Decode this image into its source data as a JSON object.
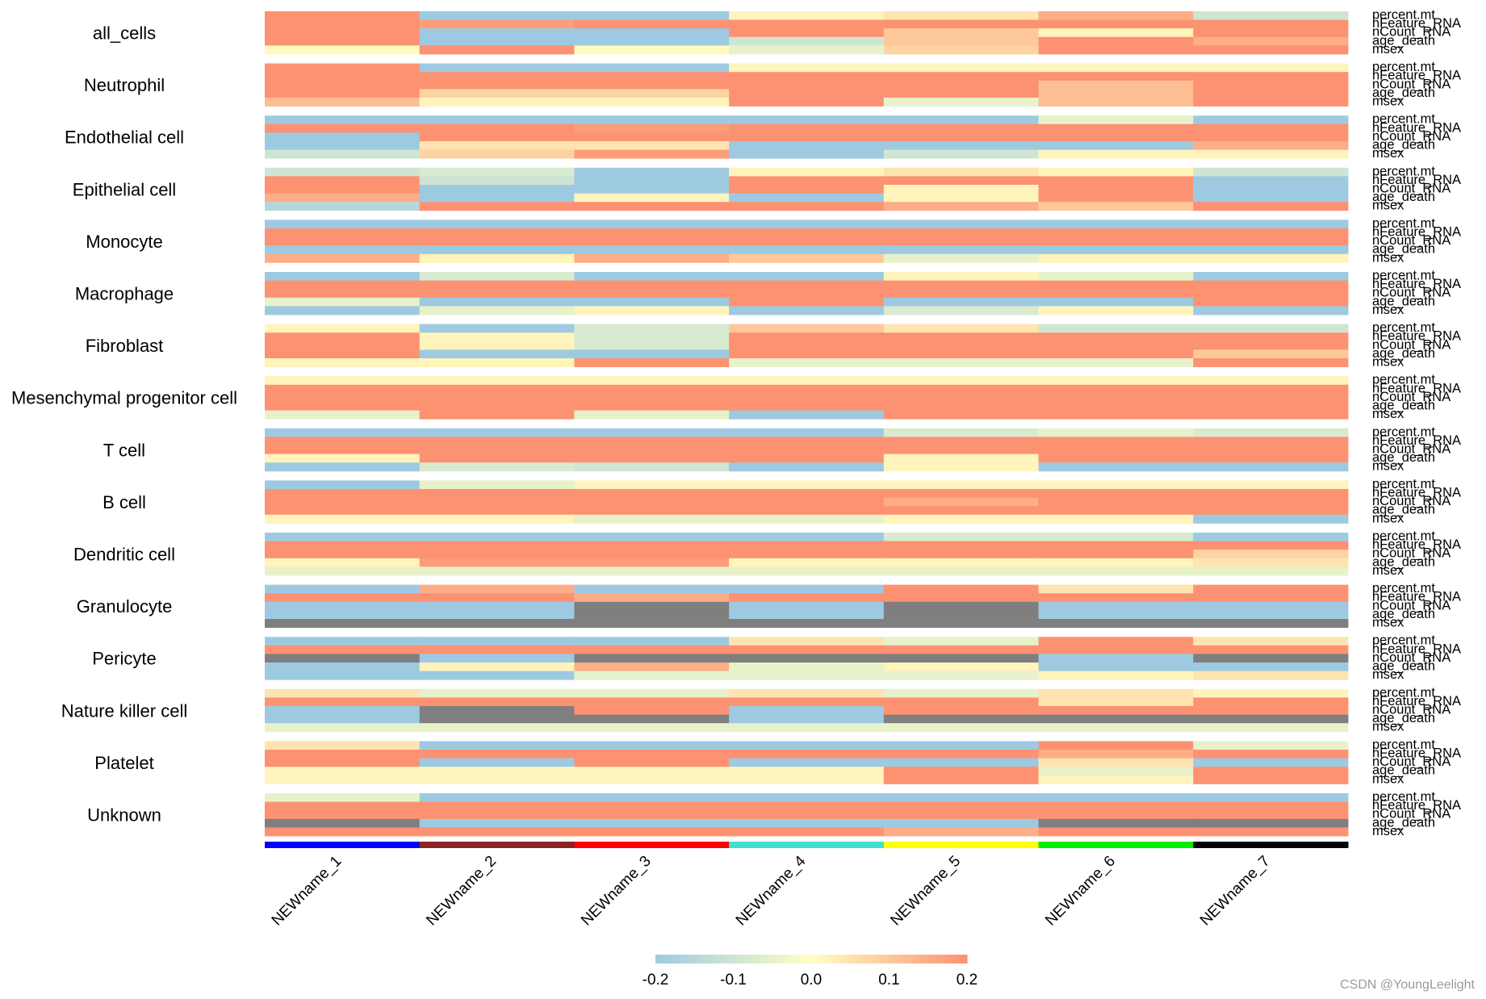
{
  "chart_data": {
    "type": "heatmap",
    "title": "",
    "columns": [
      "NEWname_1",
      "NEWname_2",
      "NEWname_3",
      "NEWname_4",
      "NEWname_5",
      "NEWname_6",
      "NEWname_7"
    ],
    "column_colors": [
      "#0000ff",
      "#8b2323",
      "#ff0000",
      "#40e0d0",
      "#ffff00",
      "#00ee00",
      "#000000"
    ],
    "variables": [
      "percent.mt",
      "nFeature_RNA",
      "nCount_RNA",
      "age_death",
      "msex"
    ],
    "groups": [
      "all_cells",
      "Neutrophil",
      "Endothelial cell",
      "Epithelial cell",
      "Monocyte",
      "Macrophage",
      "Fibroblast",
      "Mesenchymal progenitor cell",
      "T cell",
      "B cell",
      "Dendritic cell",
      "Granulocyte",
      "Pericyte",
      "Nature killer cell",
      "Platelet",
      "Unknown"
    ],
    "colorbar": {
      "range": [
        -0.2,
        0.2
      ],
      "ticks": [
        "-0.2",
        "-0.1",
        "0.0",
        "0.1",
        "0.2"
      ],
      "low": "#9ecae1",
      "mid": "#ffffc4",
      "high": "#fc9272",
      "na": "#7f7f7f"
    },
    "matrices": [
      [
        [
          0.2,
          -0.2,
          -0.2,
          0.02,
          0.05,
          0.15,
          -0.1
        ],
        [
          0.2,
          0.18,
          0.2,
          0.2,
          0.2,
          0.2,
          0.2
        ],
        [
          0.2,
          -0.2,
          -0.2,
          0.2,
          0.1,
          0.02,
          0.2
        ],
        [
          0.2,
          -0.2,
          -0.2,
          -0.1,
          0.1,
          0.2,
          0.15
        ],
        [
          0.01,
          0.2,
          0.01,
          -0.05,
          0.08,
          0.2,
          0.2
        ]
      ],
      [
        [
          0.2,
          -0.2,
          -0.2,
          0.02,
          0.02,
          0.02,
          0.02
        ],
        [
          0.2,
          0.2,
          0.2,
          0.2,
          0.2,
          0.2,
          0.2
        ],
        [
          0.2,
          0.2,
          0.2,
          0.2,
          0.2,
          0.12,
          0.2
        ],
        [
          0.2,
          0.08,
          0.08,
          0.2,
          0.2,
          0.12,
          0.2
        ],
        [
          0.12,
          0.02,
          0.02,
          0.2,
          -0.05,
          0.12,
          0.2
        ]
      ],
      [
        [
          -0.2,
          -0.2,
          -0.2,
          -0.2,
          -0.2,
          -0.05,
          -0.2
        ],
        [
          0.2,
          0.2,
          0.18,
          0.2,
          0.2,
          0.2,
          0.2
        ],
        [
          -0.2,
          0.2,
          0.2,
          0.2,
          0.2,
          0.2,
          0.2
        ],
        [
          -0.2,
          0.05,
          0.05,
          -0.2,
          -0.2,
          -0.2,
          0.15
        ],
        [
          -0.1,
          0.08,
          0.18,
          -0.2,
          -0.1,
          0.02,
          0.02
        ]
      ],
      [
        [
          -0.1,
          -0.08,
          -0.2,
          0.02,
          0.05,
          0.02,
          -0.1
        ],
        [
          0.2,
          -0.1,
          -0.2,
          0.2,
          0.2,
          0.2,
          -0.2
        ],
        [
          0.2,
          -0.2,
          -0.2,
          0.2,
          0.02,
          0.2,
          -0.2
        ],
        [
          0.15,
          -0.2,
          0.02,
          -0.2,
          0.02,
          0.2,
          -0.2
        ],
        [
          -0.15,
          0.2,
          0.2,
          0.2,
          0.15,
          0.1,
          0.2
        ]
      ],
      [
        [
          -0.2,
          -0.2,
          -0.2,
          -0.2,
          -0.2,
          -0.2,
          -0.2
        ],
        [
          0.2,
          0.2,
          0.2,
          0.2,
          0.2,
          0.2,
          0.2
        ],
        [
          0.2,
          0.2,
          0.2,
          0.2,
          0.2,
          0.2,
          0.2
        ],
        [
          -0.2,
          -0.2,
          -0.2,
          -0.2,
          -0.2,
          -0.2,
          -0.2
        ],
        [
          0.15,
          0.02,
          0.15,
          0.1,
          -0.05,
          0.02,
          0.02
        ]
      ],
      [
        [
          -0.2,
          -0.08,
          -0.2,
          -0.2,
          0.02,
          -0.05,
          -0.2
        ],
        [
          0.2,
          0.2,
          0.2,
          0.2,
          0.2,
          0.2,
          0.2
        ],
        [
          0.2,
          0.2,
          0.2,
          0.2,
          0.2,
          0.2,
          0.2
        ],
        [
          -0.05,
          -0.2,
          -0.2,
          0.2,
          -0.2,
          -0.2,
          0.2
        ],
        [
          -0.2,
          -0.05,
          0.02,
          -0.2,
          -0.08,
          0.02,
          -0.2
        ]
      ],
      [
        [
          0.02,
          -0.2,
          -0.08,
          0.1,
          0.05,
          -0.1,
          -0.1
        ],
        [
          0.2,
          0.02,
          -0.08,
          0.2,
          0.2,
          0.2,
          0.2
        ],
        [
          0.2,
          0.02,
          -0.08,
          0.2,
          0.2,
          0.2,
          0.2
        ],
        [
          0.2,
          -0.2,
          -0.2,
          0.2,
          0.2,
          0.2,
          0.1
        ],
        [
          0.02,
          0.02,
          0.2,
          -0.05,
          -0.05,
          -0.05,
          0.2
        ]
      ],
      [
        [
          0.02,
          0.02,
          0.02,
          0.02,
          0.02,
          0.02,
          0.02
        ],
        [
          0.2,
          0.2,
          0.2,
          0.2,
          0.2,
          0.2,
          0.2
        ],
        [
          0.2,
          0.2,
          0.2,
          0.2,
          0.2,
          0.2,
          0.2
        ],
        [
          0.2,
          0.2,
          0.2,
          0.2,
          0.2,
          0.2,
          0.2
        ],
        [
          -0.05,
          0.2,
          -0.05,
          -0.2,
          0.2,
          0.2,
          0.2
        ]
      ],
      [
        [
          -0.2,
          -0.2,
          -0.2,
          -0.2,
          -0.08,
          -0.05,
          -0.08
        ],
        [
          0.2,
          0.2,
          0.2,
          0.2,
          0.2,
          0.2,
          0.2
        ],
        [
          0.2,
          0.2,
          0.2,
          0.2,
          0.2,
          0.2,
          0.2
        ],
        [
          0.02,
          0.2,
          0.2,
          0.2,
          0.02,
          0.2,
          0.2
        ],
        [
          -0.2,
          -0.08,
          -0.1,
          -0.2,
          0.02,
          -0.2,
          -0.2
        ]
      ],
      [
        [
          -0.2,
          -0.05,
          0.02,
          0.02,
          0.02,
          0.02,
          0.02
        ],
        [
          0.2,
          0.2,
          0.2,
          0.2,
          0.2,
          0.2,
          0.2
        ],
        [
          0.2,
          0.2,
          0.2,
          0.2,
          0.15,
          0.2,
          0.2
        ],
        [
          0.2,
          0.2,
          0.2,
          0.2,
          0.2,
          0.2,
          0.2
        ],
        [
          0.02,
          0.02,
          -0.05,
          -0.05,
          0.02,
          0.02,
          -0.2
        ]
      ],
      [
        [
          -0.2,
          -0.2,
          -0.2,
          -0.2,
          -0.08,
          -0.08,
          -0.2
        ],
        [
          0.2,
          0.2,
          0.2,
          0.2,
          0.2,
          0.2,
          0.2
        ],
        [
          0.2,
          0.2,
          0.2,
          0.2,
          0.2,
          0.2,
          0.08
        ],
        [
          0.02,
          0.18,
          0.18,
          0.02,
          0.02,
          0.02,
          0.05
        ],
        [
          -0.05,
          -0.05,
          -0.05,
          -0.05,
          -0.05,
          -0.05,
          -0.05
        ]
      ],
      [
        [
          -0.2,
          0.15,
          -0.2,
          -0.2,
          0.2,
          0.05,
          0.2
        ],
        [
          0.2,
          0.2,
          0.15,
          0.2,
          0.2,
          0.2,
          0.2
        ],
        [
          -0.2,
          -0.2,
          null,
          -0.2,
          null,
          -0.2,
          -0.2
        ],
        [
          -0.2,
          -0.2,
          null,
          -0.2,
          null,
          -0.2,
          -0.2
        ],
        [
          null,
          null,
          null,
          null,
          null,
          null,
          null
        ]
      ],
      [
        [
          -0.2,
          -0.2,
          -0.2,
          0.05,
          -0.05,
          0.2,
          0.05
        ],
        [
          0.2,
          0.2,
          0.2,
          0.2,
          0.2,
          0.2,
          0.2
        ],
        [
          null,
          -0.2,
          null,
          null,
          null,
          -0.2,
          null
        ],
        [
          -0.2,
          0.02,
          0.15,
          -0.05,
          0.02,
          -0.2,
          -0.2
        ],
        [
          -0.2,
          -0.2,
          -0.05,
          -0.05,
          -0.05,
          0.02,
          0.05
        ]
      ],
      [
        [
          0.05,
          -0.05,
          -0.05,
          0.05,
          -0.05,
          0.05,
          0.02
        ],
        [
          0.2,
          0.2,
          0.2,
          0.2,
          0.2,
          0.05,
          0.2
        ],
        [
          -0.2,
          null,
          0.2,
          -0.2,
          0.2,
          0.2,
          0.2
        ],
        [
          -0.2,
          null,
          null,
          -0.2,
          null,
          null,
          null
        ],
        [
          -0.05,
          -0.05,
          -0.05,
          -0.05,
          -0.05,
          -0.05,
          -0.05
        ]
      ],
      [
        [
          0.05,
          -0.2,
          -0.2,
          -0.2,
          -0.2,
          0.2,
          -0.05
        ],
        [
          0.2,
          0.2,
          0.2,
          0.2,
          0.2,
          0.15,
          0.2
        ],
        [
          0.2,
          -0.2,
          0.2,
          -0.2,
          -0.2,
          0.05,
          -0.2
        ],
        [
          0.02,
          0.02,
          0.02,
          0.02,
          0.2,
          -0.05,
          0.2
        ],
        [
          0.02,
          0.02,
          0.02,
          0.02,
          0.2,
          0.02,
          0.2
        ]
      ],
      [
        [
          -0.05,
          -0.2,
          -0.2,
          -0.2,
          -0.2,
          -0.2,
          -0.2
        ],
        [
          0.2,
          0.2,
          0.2,
          0.2,
          0.2,
          0.2,
          0.2
        ],
        [
          0.2,
          0.2,
          0.2,
          0.2,
          0.2,
          0.2,
          0.2
        ],
        [
          null,
          -0.2,
          -0.2,
          -0.2,
          -0.2,
          null,
          null
        ],
        [
          0.2,
          0.2,
          0.2,
          0.2,
          0.15,
          0.2,
          0.2
        ]
      ]
    ]
  },
  "watermark": "CSDN @YoungLeelight"
}
